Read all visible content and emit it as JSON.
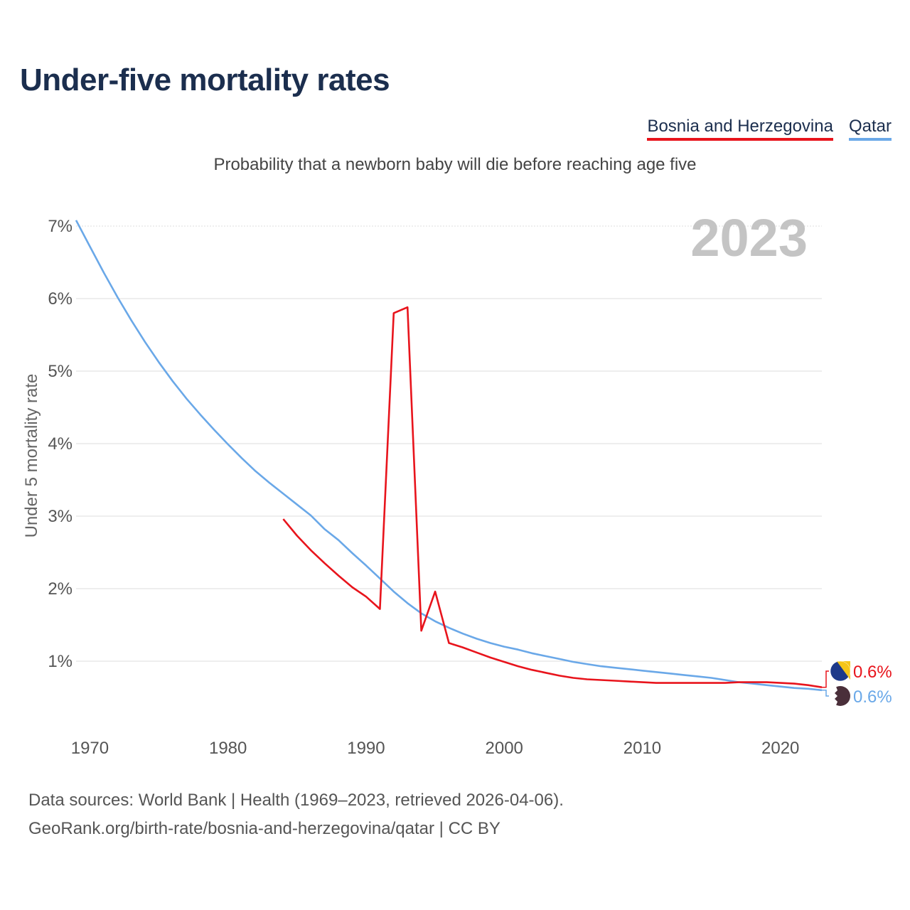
{
  "title": "Under-five mortality rates",
  "subtitle": "Probability that a newborn baby will die before reaching age five",
  "legend": [
    {
      "label": "Bosnia and Herzegovina",
      "color": "#e8141c"
    },
    {
      "label": "Qatar",
      "color": "#6aa8e8"
    }
  ],
  "year_watermark": "2023",
  "sources": {
    "line1": "Data sources: World Bank | Health (1969–2023, retrieved 2026-04-06).",
    "line2": "GeoRank.org/birth-rate/bosnia-and-herzegovina/qatar | CC BY"
  },
  "chart_data": {
    "type": "line",
    "title": "Under-five mortality rates",
    "xlabel": "",
    "ylabel": "Under 5 mortality rate",
    "xlim": [
      1969,
      2023
    ],
    "ylim": [
      0,
      7
    ],
    "x_ticks": [
      1970,
      1980,
      1990,
      2000,
      2010,
      2020
    ],
    "y_ticks": [
      {
        "value": 1,
        "label": "1%"
      },
      {
        "value": 2,
        "label": "2%"
      },
      {
        "value": 3,
        "label": "3%"
      },
      {
        "value": 4,
        "label": "4%"
      },
      {
        "value": 5,
        "label": "5%"
      },
      {
        "value": 6,
        "label": "6%"
      },
      {
        "value": 7,
        "label": "7%"
      }
    ],
    "grid": true,
    "series": [
      {
        "name": "Qatar",
        "color": "#6aa8e8",
        "end_label": "0.6%",
        "flag_icon": "qatar-flag-icon",
        "points": [
          [
            1969,
            7.08
          ],
          [
            1970,
            6.72
          ],
          [
            1971,
            6.36
          ],
          [
            1972,
            6.02
          ],
          [
            1973,
            5.7
          ],
          [
            1974,
            5.4
          ],
          [
            1975,
            5.12
          ],
          [
            1976,
            4.86
          ],
          [
            1977,
            4.62
          ],
          [
            1978,
            4.4
          ],
          [
            1979,
            4.19
          ],
          [
            1980,
            3.99
          ],
          [
            1981,
            3.8
          ],
          [
            1982,
            3.62
          ],
          [
            1983,
            3.46
          ],
          [
            1984,
            3.31
          ],
          [
            1985,
            3.16
          ],
          [
            1986,
            3.01
          ],
          [
            1987,
            2.82
          ],
          [
            1988,
            2.67
          ],
          [
            1989,
            2.49
          ],
          [
            1990,
            2.32
          ],
          [
            1991,
            2.14
          ],
          [
            1992,
            1.96
          ],
          [
            1993,
            1.8
          ],
          [
            1994,
            1.66
          ],
          [
            1995,
            1.55
          ],
          [
            1996,
            1.46
          ],
          [
            1997,
            1.38
          ],
          [
            1998,
            1.31
          ],
          [
            1999,
            1.25
          ],
          [
            2000,
            1.2
          ],
          [
            2001,
            1.16
          ],
          [
            2002,
            1.11
          ],
          [
            2003,
            1.07
          ],
          [
            2004,
            1.03
          ],
          [
            2005,
            0.99
          ],
          [
            2006,
            0.96
          ],
          [
            2007,
            0.93
          ],
          [
            2008,
            0.91
          ],
          [
            2009,
            0.89
          ],
          [
            2010,
            0.87
          ],
          [
            2011,
            0.85
          ],
          [
            2012,
            0.83
          ],
          [
            2013,
            0.81
          ],
          [
            2014,
            0.79
          ],
          [
            2015,
            0.77
          ],
          [
            2016,
            0.74
          ],
          [
            2017,
            0.71
          ],
          [
            2018,
            0.69
          ],
          [
            2019,
            0.67
          ],
          [
            2020,
            0.65
          ],
          [
            2021,
            0.63
          ],
          [
            2022,
            0.62
          ],
          [
            2023,
            0.6
          ]
        ]
      },
      {
        "name": "Bosnia and Herzegovina",
        "color": "#e8141c",
        "end_label": "0.6%",
        "flag_icon": "bosnia-flag-icon",
        "points": [
          [
            1984,
            2.96
          ],
          [
            1985,
            2.73
          ],
          [
            1986,
            2.53
          ],
          [
            1987,
            2.35
          ],
          [
            1988,
            2.18
          ],
          [
            1989,
            2.02
          ],
          [
            1990,
            1.89
          ],
          [
            1991,
            1.72
          ],
          [
            1992,
            5.8
          ],
          [
            1993,
            5.88
          ],
          [
            1994,
            1.42
          ],
          [
            1995,
            1.96
          ],
          [
            1996,
            1.25
          ],
          [
            1997,
            1.19
          ],
          [
            1998,
            1.12
          ],
          [
            1999,
            1.05
          ],
          [
            2000,
            0.99
          ],
          [
            2001,
            0.93
          ],
          [
            2002,
            0.88
          ],
          [
            2003,
            0.84
          ],
          [
            2004,
            0.8
          ],
          [
            2005,
            0.77
          ],
          [
            2006,
            0.75
          ],
          [
            2007,
            0.74
          ],
          [
            2008,
            0.73
          ],
          [
            2009,
            0.72
          ],
          [
            2010,
            0.71
          ],
          [
            2011,
            0.7
          ],
          [
            2012,
            0.7
          ],
          [
            2013,
            0.7
          ],
          [
            2014,
            0.7
          ],
          [
            2015,
            0.7
          ],
          [
            2016,
            0.7
          ],
          [
            2017,
            0.71
          ],
          [
            2018,
            0.71
          ],
          [
            2019,
            0.71
          ],
          [
            2020,
            0.7
          ],
          [
            2021,
            0.69
          ],
          [
            2022,
            0.67
          ],
          [
            2023,
            0.64
          ]
        ]
      }
    ]
  }
}
